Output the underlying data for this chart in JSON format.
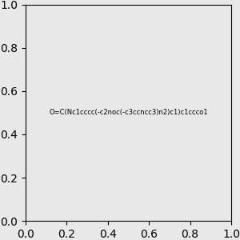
{
  "smiles": "O=C(Nc1cccc(-c2noc(-c3ccncc3)n2)c1)c1ccco1",
  "image_size": 300,
  "background_color": "#e8e8e8",
  "bond_color": "#000000",
  "atom_colors": {
    "N": "#0000FF",
    "O": "#FF0000"
  }
}
